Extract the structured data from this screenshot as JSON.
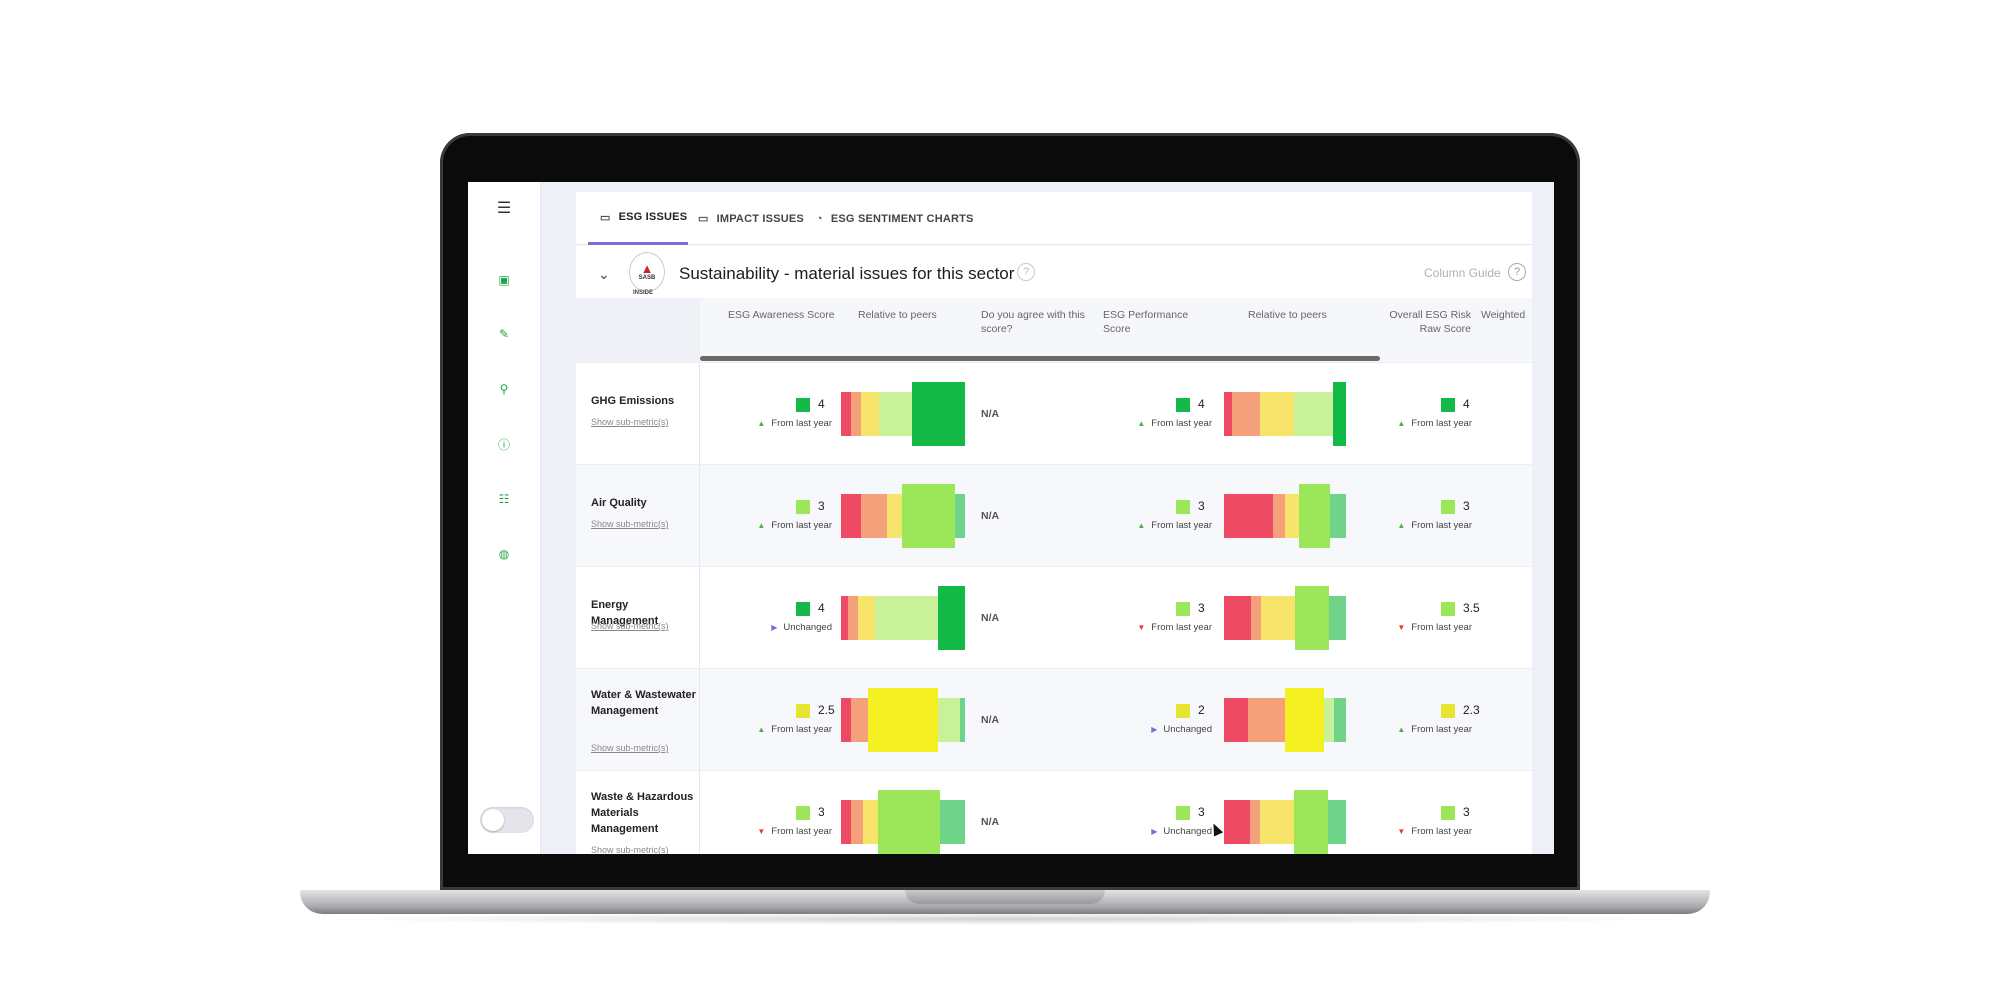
{
  "colors": {
    "accent": "#7b6fd6",
    "nav_green": "#1fa64a",
    "up_arrow": "#4caf50",
    "down_arrow": "#e53935",
    "unchanged_arrow": "#7b6fd6"
  },
  "sidebar": {
    "items": [
      {
        "icon": "hamburger-icon",
        "glyph": "☰"
      },
      {
        "icon": "briefcase-icon",
        "glyph": "▣"
      },
      {
        "icon": "edit-icon",
        "glyph": "✎"
      },
      {
        "icon": "search-icon",
        "glyph": "⚲"
      },
      {
        "icon": "info-icon",
        "glyph": "ⓘ"
      },
      {
        "icon": "list-icon",
        "glyph": "☷"
      },
      {
        "icon": "globe-icon",
        "glyph": "◍"
      }
    ]
  },
  "tabs": [
    {
      "label": "ESG ISSUES",
      "icon": "folder-open-icon",
      "active": true
    },
    {
      "label": "IMPACT ISSUES",
      "icon": "folder-open-icon",
      "active": false
    },
    {
      "label": "ESG SENTIMENT CHARTS",
      "icon": "sentiment-chart-icon",
      "active": false
    }
  ],
  "section": {
    "logo_text": "SASB",
    "logo_under": "INSIDE",
    "title": "Sustainability - material issues for this sector",
    "help": "?",
    "column_guide": "Column Guide",
    "column_guide_help": "?"
  },
  "columns": [
    "ESG Awareness Score",
    "Relative to peers",
    "Do you agree with this score?",
    "ESG Performance Score",
    "Relative to peers",
    "Overall ESG Risk Raw Score",
    "Weighted"
  ],
  "rows": [
    {
      "name": "GHG Emissions",
      "link": "Show sub-metric(s)",
      "awareness": {
        "value": "4",
        "color": "#16b84a",
        "change": "From last year",
        "dir": "up"
      },
      "awareness_peers": {
        "segments": [
          [
            "#ee4a63",
            8
          ],
          [
            "#f4a07a",
            8
          ],
          [
            "#f6e46b",
            14
          ],
          [
            "#c8f19a",
            26
          ],
          [
            "#13b946",
            42
          ]
        ],
        "highlight": 4
      },
      "agree": "N/A",
      "performance": {
        "value": "4",
        "color": "#16b84a",
        "change": "From last year",
        "dir": "up"
      },
      "performance_peers": {
        "segments": [
          [
            "#ee4a63",
            6
          ],
          [
            "#f4a07a",
            22
          ],
          [
            "#f6e46b",
            26
          ],
          [
            "#c8f19a",
            30
          ],
          [
            "#13b946",
            10
          ]
        ],
        "highlight": 4
      },
      "risk": {
        "value": "4",
        "color": "#16b84a",
        "change": "From last year",
        "dir": "up"
      }
    },
    {
      "name": "Air Quality",
      "link": "Show sub-metric(s)",
      "awareness": {
        "value": "3",
        "color": "#9be659",
        "change": "From last year",
        "dir": "up"
      },
      "awareness_peers": {
        "segments": [
          [
            "#ee4a63",
            16
          ],
          [
            "#f4a07a",
            20
          ],
          [
            "#f6e46b",
            12
          ],
          [
            "#9be659",
            42
          ],
          [
            "#6fd48a",
            8
          ]
        ],
        "highlight": 3
      },
      "agree": "N/A",
      "performance": {
        "value": "3",
        "color": "#9be659",
        "change": "From last year",
        "dir": "up"
      },
      "performance_peers": {
        "segments": [
          [
            "#ee4a63",
            42
          ],
          [
            "#f4a07a",
            10
          ],
          [
            "#f6e46b",
            12
          ],
          [
            "#9be659",
            26
          ],
          [
            "#6fd48a",
            14
          ]
        ],
        "highlight": 3
      },
      "risk": {
        "value": "3",
        "color": "#9be659",
        "change": "From last year",
        "dir": "up"
      }
    },
    {
      "name": "Energy Management",
      "link": "Show sub-metric(s)",
      "awareness": {
        "value": "4",
        "color": "#16b84a",
        "change": "Unchanged",
        "dir": "unchanged"
      },
      "awareness_peers": {
        "segments": [
          [
            "#ee4a63",
            6
          ],
          [
            "#f4a07a",
            8
          ],
          [
            "#f6e46b",
            14
          ],
          [
            "#c8f19a",
            52
          ],
          [
            "#13b946",
            22
          ]
        ],
        "highlight": 4
      },
      "agree": "N/A",
      "performance": {
        "value": "3",
        "color": "#9be659",
        "change": "From last year",
        "dir": "down"
      },
      "performance_peers": {
        "segments": [
          [
            "#ee4a63",
            22
          ],
          [
            "#f4a07a",
            8
          ],
          [
            "#f6e46b",
            28
          ],
          [
            "#9be659",
            28
          ],
          [
            "#6fd48a",
            14
          ]
        ],
        "highlight": 3
      },
      "risk": {
        "value": "3.5",
        "color": "#9be659",
        "change": "From last year",
        "dir": "down"
      }
    },
    {
      "name": "Water & Wastewater Management",
      "link": "Show sub-metric(s)",
      "awareness": {
        "value": "2.5",
        "color": "#e8e532",
        "change": "From last year",
        "dir": "up"
      },
      "awareness_peers": {
        "segments": [
          [
            "#ee4a63",
            8
          ],
          [
            "#f4a07a",
            14
          ],
          [
            "#f5f021",
            58
          ],
          [
            "#c8f19a",
            18
          ],
          [
            "#6fd48a",
            4
          ]
        ],
        "highlight": 2
      },
      "agree": "N/A",
      "performance": {
        "value": "2",
        "color": "#e8e532",
        "change": "Unchanged",
        "dir": "unchanged"
      },
      "performance_peers": {
        "segments": [
          [
            "#ee4a63",
            20
          ],
          [
            "#f4a07a",
            30
          ],
          [
            "#f5f021",
            32
          ],
          [
            "#c8f19a",
            8
          ],
          [
            "#6fd48a",
            10
          ]
        ],
        "highlight": 2
      },
      "risk": {
        "value": "2.3",
        "color": "#e8e532",
        "change": "From last year",
        "dir": "up"
      }
    },
    {
      "name": "Waste & Hazardous Materials Management",
      "link": "Show sub-metric(s)",
      "awareness": {
        "value": "3",
        "color": "#9be659",
        "change": "From last year",
        "dir": "down"
      },
      "awareness_peers": {
        "segments": [
          [
            "#ee4a63",
            8
          ],
          [
            "#f4a07a",
            10
          ],
          [
            "#f6e46b",
            12
          ],
          [
            "#9be659",
            50
          ],
          [
            "#6fd48a",
            20
          ]
        ],
        "highlight": 3
      },
      "agree": "N/A",
      "performance": {
        "value": "3",
        "color": "#9be659",
        "change": "Unchanged",
        "dir": "unchanged"
      },
      "performance_peers": {
        "segments": [
          [
            "#ee4a63",
            20
          ],
          [
            "#f4a07a",
            8
          ],
          [
            "#f6e46b",
            26
          ],
          [
            "#9be659",
            26
          ],
          [
            "#6fd48a",
            14
          ]
        ],
        "highlight": 3
      },
      "risk": {
        "value": "3",
        "color": "#9be659",
        "change": "From last year",
        "dir": "down"
      }
    }
  ]
}
